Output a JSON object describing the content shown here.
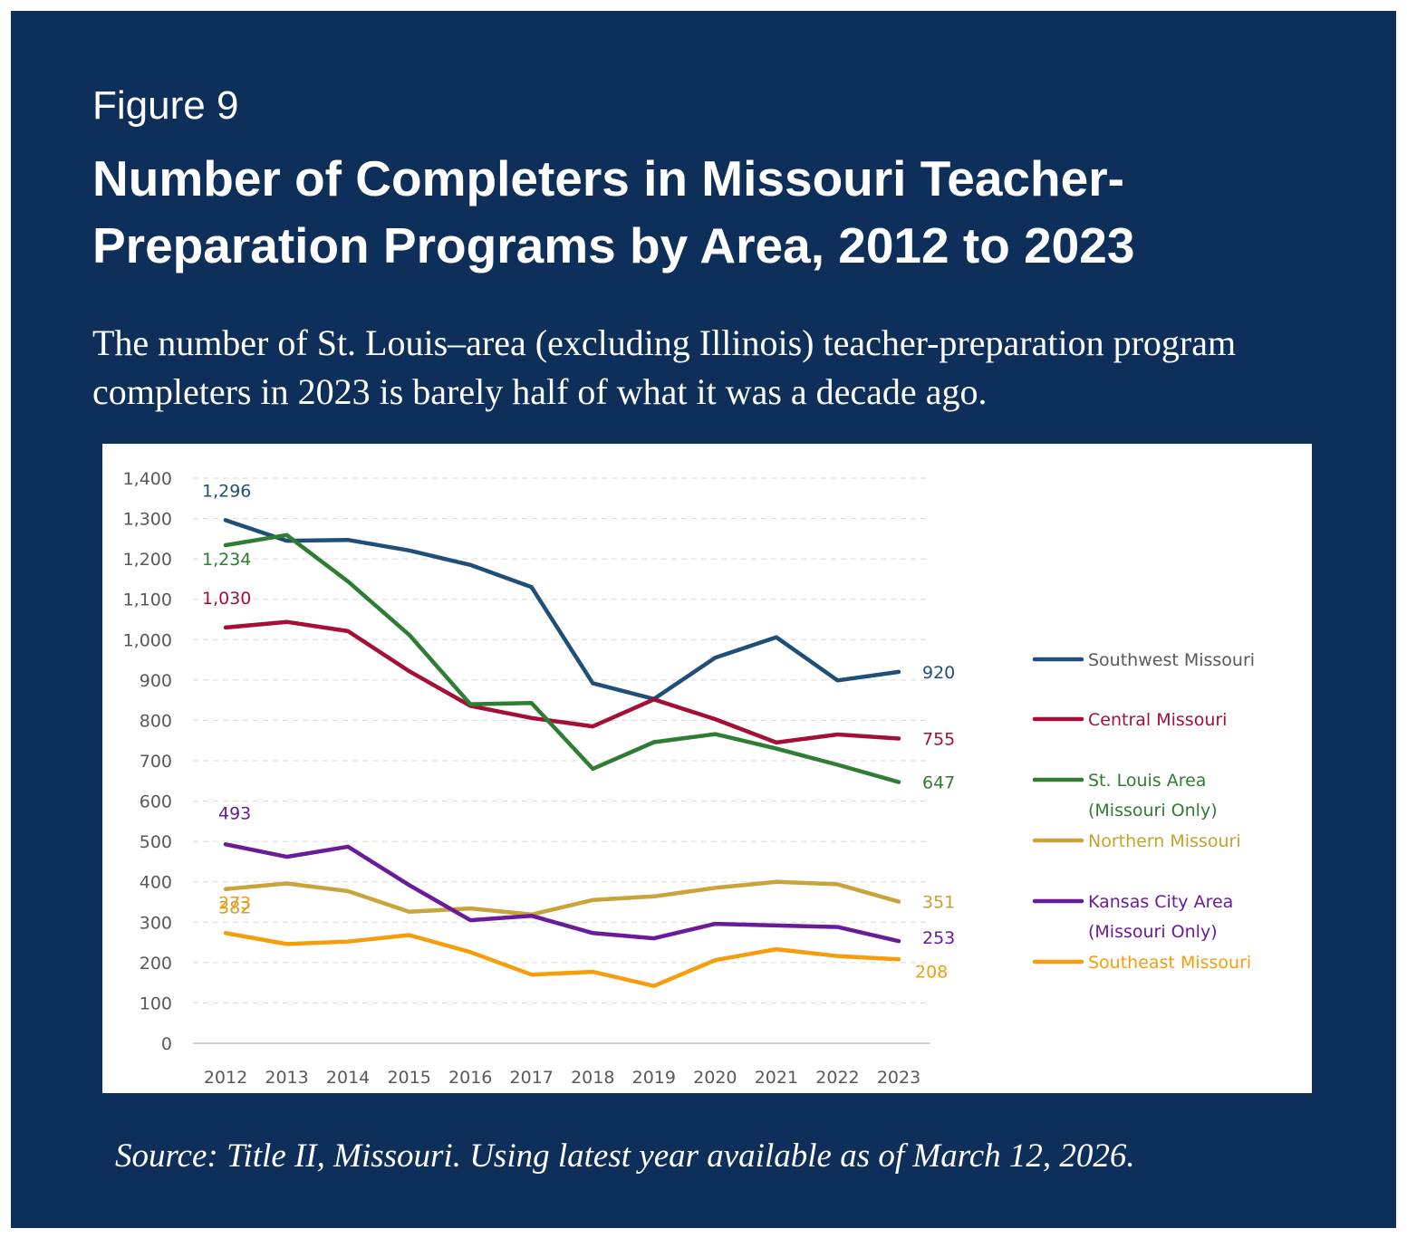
{
  "figure_label": "Figure 9",
  "title": "Number of Completers in Missouri Teacher-Preparation Programs by Area, 2012 to 2023",
  "subtitle": "The number of St. Louis–area (excluding Illinois) teacher-preparation program completers in 2023 is barely half of what it was a decade ago.",
  "source": "Source: Title II, Missouri. Using latest year available as of March 12, 2026.",
  "chart_data": {
    "type": "line",
    "x": [
      2012,
      2013,
      2014,
      2015,
      2016,
      2017,
      2018,
      2019,
      2020,
      2021,
      2022,
      2023
    ],
    "ylim": [
      0,
      1400
    ],
    "yticks": [
      0,
      100,
      200,
      300,
      400,
      500,
      600,
      700,
      800,
      900,
      1000,
      1100,
      1200,
      1300,
      1400
    ],
    "ytick_labels": [
      "0",
      "100",
      "200",
      "300",
      "400",
      "500",
      "600",
      "700",
      "800",
      "900",
      "1,000",
      "1,100",
      "1,200",
      "1,300",
      "1,400"
    ],
    "grid": "horizontal dashed",
    "legend_position": "right",
    "series": [
      {
        "name": "Southwest Missouri",
        "legend_lines": [
          "Southwest Missouri"
        ],
        "color": "#1f4e79",
        "label_color": "#1f4e79",
        "values": [
          1296,
          1245,
          1247,
          1221,
          1185,
          1130,
          892,
          853,
          955,
          1006,
          899,
          920
        ],
        "start_label": "1,296",
        "end_label": "920"
      },
      {
        "name": "Central Missouri",
        "legend_lines": [
          "Central Missouri"
        ],
        "color": "#a50f35",
        "label_color": "#a50f35",
        "values": [
          1030,
          1044,
          1021,
          922,
          836,
          806,
          785,
          852,
          803,
          745,
          765,
          755
        ],
        "start_label": "1,030",
        "end_label": "755"
      },
      {
        "name": "St. Louis Area (Missouri Only)",
        "legend_lines": [
          "St. Louis Area",
          "(Missouri Only)"
        ],
        "color": "#2e7d32",
        "label_color": "#2e7d32",
        "values": [
          1234,
          1259,
          1144,
          1012,
          840,
          843,
          680,
          746,
          766,
          730,
          690,
          647
        ],
        "start_label": "1,234",
        "end_label": "647"
      },
      {
        "name": "Northern Missouri",
        "legend_lines": [
          "Northern Missouri"
        ],
        "color": "#c9a43a",
        "label_color": "#c9a02e",
        "values": [
          382,
          396,
          377,
          326,
          334,
          319,
          355,
          364,
          385,
          400,
          394,
          351
        ],
        "start_label": "382",
        "end_label": "351"
      },
      {
        "name": "Kansas City Area (Missouri Only)",
        "legend_lines": [
          "Kansas City Area",
          "(Missouri Only)"
        ],
        "color": "#6a1b9a",
        "label_color": "#6a1b9a",
        "values": [
          493,
          462,
          487,
          392,
          305,
          316,
          273,
          260,
          296,
          292,
          288,
          253
        ],
        "start_label": "493",
        "end_label": "253"
      },
      {
        "name": "Southeast Missouri",
        "legend_lines": [
          "Southeast Missouri"
        ],
        "color": "#f59d0a",
        "label_color": "#f59d0a",
        "values": [
          273,
          246,
          252,
          268,
          226,
          170,
          177,
          142,
          206,
          233,
          216,
          208
        ],
        "start_label": "273",
        "end_label": "208"
      }
    ]
  }
}
